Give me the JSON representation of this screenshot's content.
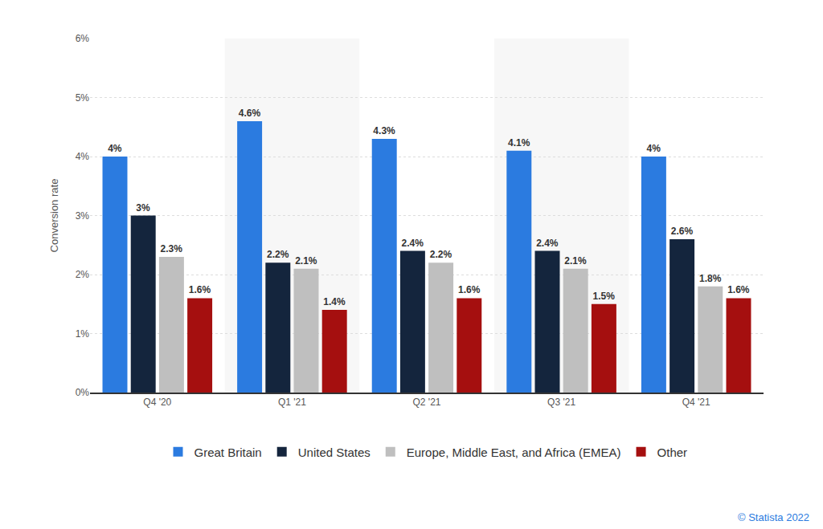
{
  "chart_data": {
    "type": "bar",
    "y_label": "Conversion rate",
    "categories": [
      "Q4 '20",
      "Q1 '21",
      "Q2 '21",
      "Q3 '21",
      "Q4 '21"
    ],
    "series": [
      {
        "name": "Great Britain",
        "color": "#2b7be0",
        "values": [
          4,
          4.6,
          4.3,
          4.1,
          4
        ],
        "value_labels": [
          "4%",
          "4.6%",
          "4.3%",
          "4.1%",
          "4%"
        ]
      },
      {
        "name": "United States",
        "color": "#14253d",
        "values": [
          3,
          2.2,
          2.4,
          2.4,
          2.6
        ],
        "value_labels": [
          "3%",
          "2.2%",
          "2.4%",
          "2.4%",
          "2.6%"
        ]
      },
      {
        "name": "Europe, Middle East, and Africa (EMEA)",
        "color": "#bfbfbf",
        "values": [
          2.3,
          2.1,
          2.2,
          2.1,
          1.8
        ],
        "value_labels": [
          "2.3%",
          "2.1%",
          "2.2%",
          "2.1%",
          "1.8%"
        ]
      },
      {
        "name": "Other",
        "color": "#a50f0f",
        "values": [
          1.6,
          1.4,
          1.6,
          1.5,
          1.6
        ],
        "value_labels": [
          "1.6%",
          "1.4%",
          "1.6%",
          "1.5%",
          "1.6%"
        ]
      }
    ],
    "ylim": [
      0,
      6
    ],
    "yticks": [
      {
        "value": 0,
        "label": "0%"
      },
      {
        "value": 1,
        "label": "1%"
      },
      {
        "value": 2,
        "label": "2%"
      },
      {
        "value": 3,
        "label": "3%"
      },
      {
        "value": 4,
        "label": "4%"
      },
      {
        "value": 5,
        "label": "5%"
      },
      {
        "value": 6,
        "label": "6%"
      }
    ],
    "grid": true,
    "legend": "bottom",
    "data_labels": true,
    "annotations": [
      "© Statista 2022"
    ]
  }
}
